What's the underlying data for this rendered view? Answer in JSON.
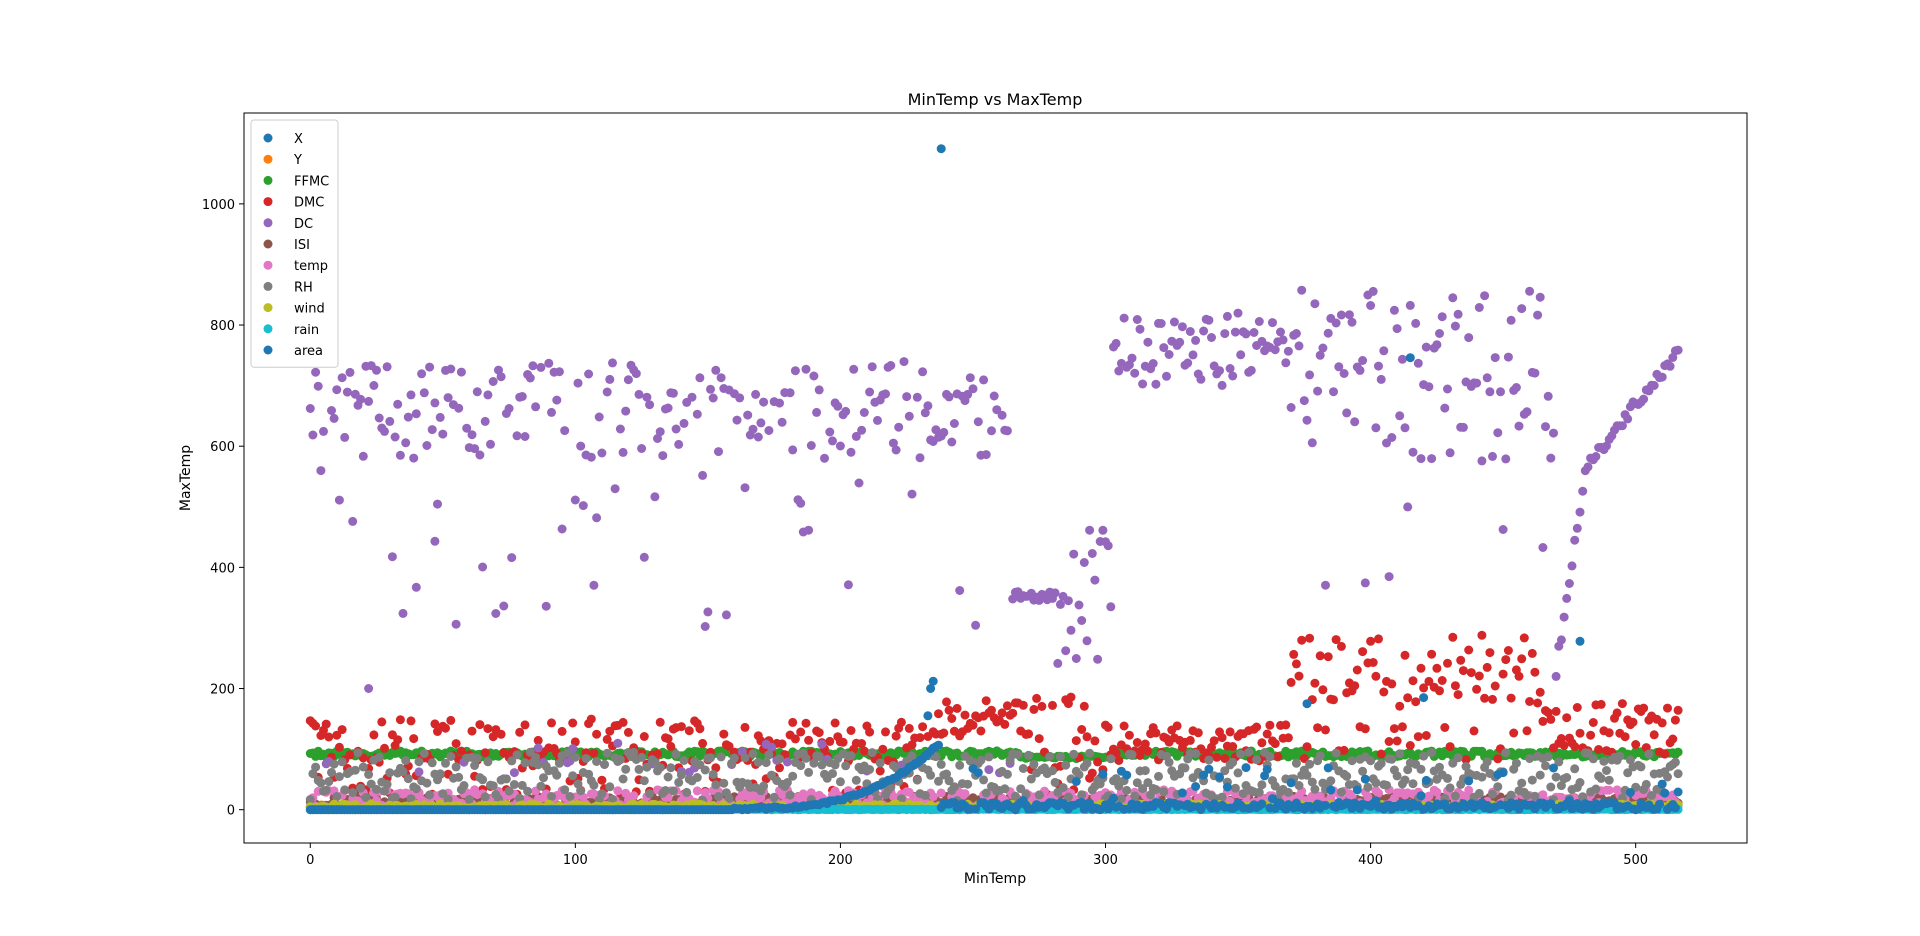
{
  "chart_data": {
    "type": "scatter",
    "title": "MinTemp vs MaxTemp",
    "xlabel": "MinTemp",
    "ylabel": "MaxTemp",
    "xlim": [
      -25,
      542
    ],
    "ylim": [
      -55,
      1150
    ],
    "xticks": [
      0,
      100,
      200,
      300,
      400,
      500
    ],
    "yticks": [
      0,
      200,
      400,
      600,
      800,
      1000
    ],
    "xtick_labels": [
      "0",
      "100",
      "200",
      "300",
      "400",
      "500"
    ],
    "ytick_labels": [
      "0",
      "200",
      "400",
      "600",
      "800",
      "1000"
    ],
    "grid": false,
    "legend_position": "top-left",
    "n_points": 517,
    "series": [
      {
        "name": "X",
        "color": "#1f77b4",
        "pattern": "range",
        "params": {
          "min": 1,
          "max": 9
        }
      },
      {
        "name": "Y",
        "color": "#ff7f0e",
        "pattern": "range",
        "params": {
          "min": 2,
          "max": 9
        }
      },
      {
        "name": "FFMC",
        "color": "#2ca02c",
        "pattern": "ffmc",
        "params": {}
      },
      {
        "name": "DMC",
        "color": "#d62728",
        "pattern": "dmc",
        "params": {}
      },
      {
        "name": "DC",
        "color": "#9467bd",
        "pattern": "dc",
        "params": {}
      },
      {
        "name": "ISI",
        "color": "#8c564b",
        "pattern": "range",
        "params": {
          "min": 0,
          "max": 22
        }
      },
      {
        "name": "temp",
        "color": "#e377c2",
        "pattern": "range",
        "params": {
          "min": 2,
          "max": 33
        }
      },
      {
        "name": "RH",
        "color": "#7f7f7f",
        "pattern": "rh",
        "params": {}
      },
      {
        "name": "wind",
        "color": "#bcbd22",
        "pattern": "range",
        "params": {
          "min": 0.4,
          "max": 9.4
        }
      },
      {
        "name": "rain",
        "color": "#17becf",
        "pattern": "range",
        "params": {
          "min": 0,
          "max": 1
        }
      },
      {
        "name": "area",
        "color": "#1f77b4",
        "pattern": "area",
        "params": {}
      }
    ],
    "highlighted_points": [
      {
        "series": "area",
        "x": 238,
        "y": 1091
      },
      {
        "series": "area",
        "x": 415,
        "y": 746
      },
      {
        "series": "area",
        "x": 479,
        "y": 278
      },
      {
        "series": "area",
        "x": 235,
        "y": 212
      },
      {
        "series": "area",
        "x": 234,
        "y": 200
      },
      {
        "series": "area",
        "x": 420,
        "y": 185
      },
      {
        "series": "area",
        "x": 376,
        "y": 175
      },
      {
        "series": "area",
        "x": 233,
        "y": 155
      },
      {
        "series": "DC",
        "x": 22,
        "y": 200
      },
      {
        "series": "DC",
        "x": 40,
        "y": 367
      },
      {
        "series": "DC",
        "x": 47,
        "y": 443
      }
    ]
  }
}
